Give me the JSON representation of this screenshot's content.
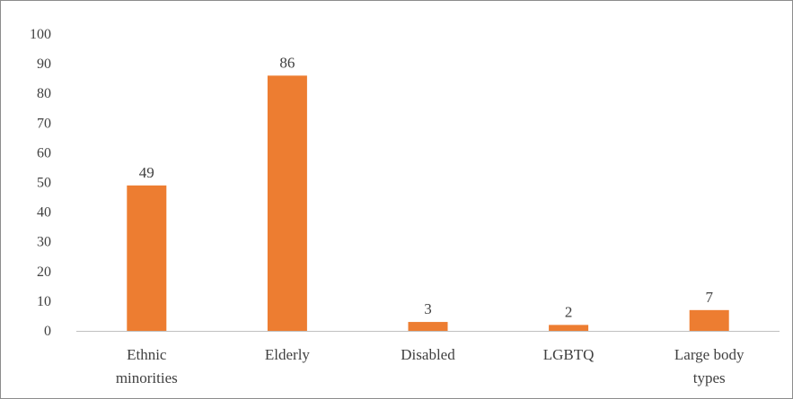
{
  "chart_data": {
    "type": "bar",
    "categories": [
      [
        "Ethnic",
        "minorities"
      ],
      [
        "Elderly"
      ],
      [
        "Disabled"
      ],
      [
        "LGBTQ"
      ],
      [
        "Large body",
        "types"
      ]
    ],
    "values": [
      49,
      86,
      3,
      2,
      7
    ],
    "data_labels": [
      "49",
      "86",
      "3",
      "2",
      "7"
    ],
    "ylim": [
      0,
      100
    ],
    "yticks": [
      "0",
      "10",
      "20",
      "30",
      "40",
      "50",
      "60",
      "70",
      "80",
      "90",
      "100"
    ],
    "grid": false,
    "legend": "none",
    "bar_color": "#ed7d31",
    "axis_color": "#bfbfbf",
    "text_color": "#404040"
  }
}
